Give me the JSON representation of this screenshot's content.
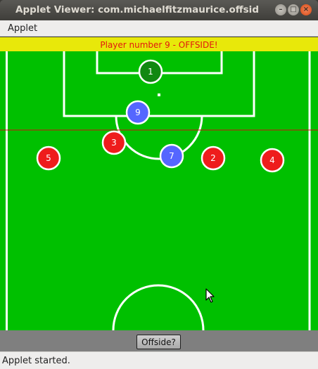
{
  "window": {
    "title": "Applet Viewer: com.michaelfitzmaurice.offside.O",
    "controls": {
      "minimize": "–",
      "maximize": "□",
      "close": "×"
    }
  },
  "menubar": {
    "items": [
      "Applet"
    ]
  },
  "banner": {
    "text": "Player number 9 - OFFSIDE!"
  },
  "pitch": {
    "colors": {
      "grass": "#00c000",
      "lines": "#ffffff",
      "offside_line": "#d01010",
      "red_team": "#ee1c1c",
      "blue_team": "#5566ff",
      "goalkeeper": "#118811"
    },
    "players": [
      {
        "number": "1",
        "team": "goalkeeper"
      },
      {
        "number": "9",
        "team": "blue"
      },
      {
        "number": "3",
        "team": "red"
      },
      {
        "number": "5",
        "team": "red"
      },
      {
        "number": "7",
        "team": "blue"
      },
      {
        "number": "2",
        "team": "red"
      },
      {
        "number": "4",
        "team": "red"
      }
    ]
  },
  "controls": {
    "offside_button": "Offside?"
  },
  "status": {
    "text": "Applet started."
  }
}
